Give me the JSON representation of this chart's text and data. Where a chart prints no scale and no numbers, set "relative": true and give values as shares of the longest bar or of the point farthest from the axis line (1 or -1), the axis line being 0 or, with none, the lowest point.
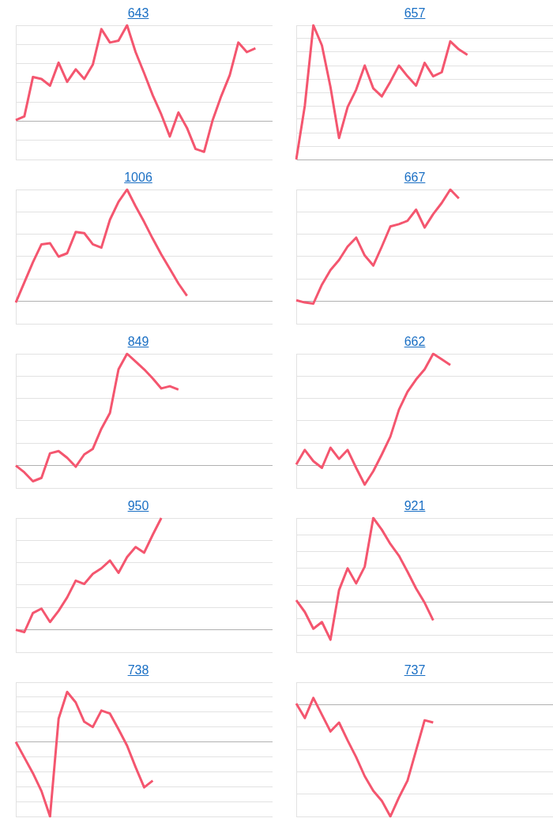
{
  "chart_data": [
    {
      "type": "line",
      "title": "643",
      "relative": true,
      "grid": "y",
      "tick_labels": false,
      "color": "#f4566f",
      "categories": [
        null,
        null,
        null,
        null,
        null,
        null,
        null,
        null,
        null,
        null,
        null,
        null,
        null,
        null,
        null,
        null,
        null,
        null,
        null,
        null,
        null,
        null,
        null,
        null,
        null,
        null,
        null,
        null,
        null,
        null,
        null
      ],
      "values": [
        0.01,
        0.05,
        0.46,
        0.44,
        0.37,
        0.61,
        0.41,
        0.54,
        0.44,
        0.59,
        0.96,
        0.82,
        0.84,
        1.0,
        0.72,
        0.5,
        0.27,
        0.07,
        -0.16,
        0.09,
        -0.07,
        -0.29,
        -0.32,
        0.01,
        0.26,
        0.48,
        0.82,
        0.72,
        0.76,
        null,
        null
      ]
    },
    {
      "type": "line",
      "title": "657",
      "relative": true,
      "grid": "y",
      "tick_labels": false,
      "color": "#f4566f",
      "categories": [
        null,
        null,
        null,
        null,
        null,
        null,
        null,
        null,
        null,
        null,
        null,
        null,
        null,
        null,
        null,
        null,
        null,
        null,
        null,
        null,
        null,
        null,
        null,
        null,
        null,
        null,
        null,
        null,
        null,
        null,
        null
      ],
      "values": [
        0,
        0.4,
        1.0,
        0.85,
        0.54,
        0.16,
        0.39,
        0.52,
        0.7,
        0.53,
        0.47,
        0.58,
        0.7,
        0.62,
        0.55,
        0.72,
        0.62,
        0.65,
        0.88,
        0.82,
        0.78,
        null,
        null,
        null,
        null,
        null,
        null,
        null,
        null,
        null,
        null
      ]
    },
    {
      "type": "line",
      "title": "1006",
      "relative": true,
      "grid": "y",
      "tick_labels": false,
      "color": "#f4566f",
      "categories": [
        null,
        null,
        null,
        null,
        null,
        null,
        null,
        null,
        null,
        null,
        null,
        null,
        null,
        null,
        null,
        null,
        null,
        null,
        null,
        null,
        null,
        null,
        null,
        null,
        null,
        null,
        null,
        null,
        null,
        null,
        null
      ],
      "values": [
        -0.01,
        0.17,
        0.35,
        0.51,
        0.52,
        0.4,
        0.43,
        0.62,
        0.61,
        0.51,
        0.48,
        0.73,
        0.89,
        1.0,
        0.85,
        0.71,
        0.56,
        0.42,
        0.29,
        0.16,
        0.05,
        null,
        null,
        null,
        null,
        null,
        null,
        null,
        null,
        null,
        null
      ]
    },
    {
      "type": "line",
      "title": "667",
      "relative": true,
      "grid": "y",
      "tick_labels": false,
      "color": "#f4566f",
      "categories": [
        null,
        null,
        null,
        null,
        null,
        null,
        null,
        null,
        null,
        null,
        null,
        null,
        null,
        null,
        null,
        null,
        null,
        null,
        null,
        null,
        null,
        null,
        null,
        null,
        null,
        null,
        null,
        null,
        null,
        null,
        null
      ],
      "values": [
        0.01,
        -0.01,
        -0.02,
        0.15,
        0.28,
        0.37,
        0.49,
        0.57,
        0.41,
        0.32,
        0.49,
        0.67,
        0.69,
        0.72,
        0.82,
        0.66,
        0.78,
        0.88,
        1.0,
        0.92,
        null,
        null,
        null,
        null,
        null,
        null,
        null,
        null,
        null,
        null,
        null
      ]
    },
    {
      "type": "line",
      "title": "849",
      "relative": true,
      "grid": "y",
      "tick_labels": false,
      "color": "#f4566f",
      "categories": [
        null,
        null,
        null,
        null,
        null,
        null,
        null,
        null,
        null,
        null,
        null,
        null,
        null,
        null,
        null,
        null,
        null,
        null,
        null,
        null,
        null,
        null,
        null,
        null,
        null,
        null,
        null,
        null,
        null,
        null,
        null
      ],
      "values": [
        0,
        -0.06,
        -0.14,
        -0.11,
        0.11,
        0.13,
        0.07,
        -0.01,
        0.1,
        0.15,
        0.33,
        0.47,
        0.86,
        1.0,
        0.93,
        0.86,
        0.78,
        0.69,
        0.71,
        0.68,
        null,
        null,
        null,
        null,
        null,
        null,
        null,
        null,
        null,
        null,
        null
      ]
    },
    {
      "type": "line",
      "title": "662",
      "relative": true,
      "grid": "y",
      "tick_labels": false,
      "color": "#f4566f",
      "categories": [
        null,
        null,
        null,
        null,
        null,
        null,
        null,
        null,
        null,
        null,
        null,
        null,
        null,
        null,
        null,
        null,
        null,
        null,
        null,
        null,
        null,
        null,
        null,
        null,
        null,
        null,
        null,
        null,
        null,
        null,
        null
      ],
      "values": [
        0.01,
        0.14,
        0.04,
        -0.02,
        0.16,
        0.06,
        0.14,
        -0.02,
        -0.17,
        -0.05,
        0.1,
        0.26,
        0.5,
        0.66,
        0.77,
        0.86,
        1.0,
        0.95,
        0.9,
        null,
        null,
        null,
        null,
        null,
        null,
        null,
        null,
        null,
        null,
        null,
        null
      ]
    },
    {
      "type": "line",
      "title": "950",
      "relative": true,
      "grid": "y",
      "tick_labels": false,
      "color": "#f4566f",
      "categories": [
        null,
        null,
        null,
        null,
        null,
        null,
        null,
        null,
        null,
        null,
        null,
        null,
        null,
        null,
        null,
        null,
        null,
        null,
        null,
        null,
        null,
        null,
        null,
        null,
        null,
        null,
        null,
        null,
        null,
        null,
        null
      ],
      "values": [
        0,
        -0.02,
        0.15,
        0.19,
        0.07,
        0.17,
        0.29,
        0.44,
        0.41,
        0.5,
        0.55,
        0.62,
        0.51,
        0.65,
        0.74,
        0.69,
        0.85,
        1.0,
        null,
        null,
        null,
        null,
        null,
        null,
        null,
        null,
        null,
        null,
        null,
        null,
        null
      ]
    },
    {
      "type": "line",
      "title": "921",
      "relative": true,
      "grid": "y",
      "tick_labels": false,
      "color": "#f4566f",
      "categories": [
        null,
        null,
        null,
        null,
        null,
        null,
        null,
        null,
        null,
        null,
        null,
        null,
        null,
        null,
        null,
        null,
        null,
        null,
        null,
        null,
        null,
        null,
        null,
        null,
        null,
        null,
        null,
        null,
        null,
        null,
        null
      ],
      "values": [
        0.02,
        -0.12,
        -0.32,
        -0.24,
        -0.45,
        0.14,
        0.4,
        0.22,
        0.42,
        1.0,
        0.86,
        0.69,
        0.55,
        0.36,
        0.16,
        -0.01,
        -0.22,
        null,
        null,
        null,
        null,
        null,
        null,
        null,
        null,
        null,
        null,
        null,
        null,
        null,
        null
      ]
    },
    {
      "type": "line",
      "title": "738",
      "relative": true,
      "grid": "y",
      "tick_labels": false,
      "color": "#f4566f",
      "categories": [
        null,
        null,
        null,
        null,
        null,
        null,
        null,
        null,
        null,
        null,
        null,
        null,
        null,
        null,
        null,
        null,
        null,
        null,
        null,
        null,
        null,
        null,
        null,
        null,
        null,
        null,
        null,
        null,
        null,
        null,
        null
      ],
      "values": [
        0,
        -0.21,
        -0.42,
        -0.66,
        -1.0,
        0.31,
        0.67,
        0.53,
        0.27,
        0.2,
        0.42,
        0.38,
        0.17,
        -0.05,
        -0.34,
        -0.61,
        -0.52,
        null,
        null,
        null,
        null,
        null,
        null,
        null,
        null,
        null,
        null,
        null,
        null,
        null,
        null
      ]
    },
    {
      "type": "line",
      "title": "737",
      "relative": true,
      "grid": "y",
      "tick_labels": false,
      "color": "#f4566f",
      "categories": [
        null,
        null,
        null,
        null,
        null,
        null,
        null,
        null,
        null,
        null,
        null,
        null,
        null,
        null,
        null,
        null,
        null,
        null,
        null,
        null,
        null,
        null,
        null,
        null,
        null,
        null,
        null,
        null,
        null,
        null,
        null
      ],
      "values": [
        0.01,
        -0.12,
        0.06,
        -0.09,
        -0.24,
        -0.16,
        -0.32,
        -0.47,
        -0.64,
        -0.77,
        -0.86,
        -1.0,
        -0.83,
        -0.68,
        -0.41,
        -0.14,
        -0.16,
        null,
        null,
        null,
        null,
        null,
        null,
        null,
        null,
        null,
        null,
        null,
        null,
        null,
        null
      ]
    }
  ]
}
